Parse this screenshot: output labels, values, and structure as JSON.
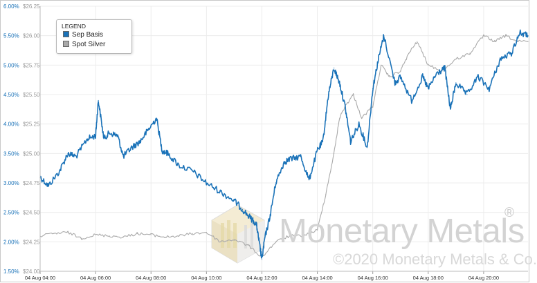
{
  "chart_data": {
    "type": "line",
    "title": "",
    "legend": {
      "title": "LEGEND",
      "placement": "top-left",
      "entries": [
        "Sep Basis",
        "Spot Silver"
      ]
    },
    "x_tick_labels": [
      "04 Aug 04:00",
      "04 Aug 06:00",
      "04 Aug 08:00",
      "04 Aug 10:00",
      "04 Aug 12:00",
      "04 Aug 14:00",
      "04 Aug 16:00",
      "04 Aug 18:00",
      "04 Aug 20:00"
    ],
    "x_range_hours": [
      4.0,
      21.6
    ],
    "y_left": {
      "label": "",
      "ticks": [
        "1.50%",
        "2.00%",
        "2.50%",
        "3.00%",
        "3.50%",
        "4.00%",
        "4.50%",
        "5.00%",
        "5.50%",
        "6.00%"
      ],
      "range": [
        1.5,
        6.0
      ],
      "color": "#1a72b8"
    },
    "y_right": {
      "label": "",
      "ticks": [
        "$24.00",
        "$24.25",
        "$24.50",
        "$24.75",
        "$25.00",
        "$25.25",
        "$25.50",
        "$25.75",
        "$26.00",
        "$26.25"
      ],
      "range": [
        24.0,
        26.25
      ],
      "color": "#999999"
    },
    "grid": true,
    "series": [
      {
        "name": "Sep Basis",
        "axis": "left",
        "color": "#1a72b8",
        "x": [
          4.0,
          4.3,
          4.7,
          5.0,
          5.3,
          5.7,
          6.0,
          6.1,
          6.3,
          6.5,
          6.8,
          7.0,
          7.3,
          7.6,
          7.9,
          8.2,
          8.4,
          8.6,
          9.0,
          9.5,
          10.0,
          10.5,
          11.0,
          11.3,
          11.6,
          11.8,
          11.9,
          12.0,
          12.1,
          12.3,
          12.5,
          12.8,
          13.0,
          13.4,
          13.7,
          14.0,
          14.2,
          14.4,
          14.6,
          14.8,
          15.0,
          15.2,
          15.5,
          15.8,
          16.0,
          16.2,
          16.4,
          16.8,
          17.0,
          17.4,
          17.8,
          18.0,
          18.3,
          18.6,
          18.8,
          19.0,
          19.4,
          19.8,
          20.2,
          20.6,
          21.0,
          21.3,
          21.6
        ],
        "y": [
          3.1,
          2.95,
          3.2,
          3.5,
          3.45,
          3.75,
          3.8,
          4.4,
          3.75,
          3.85,
          3.8,
          3.45,
          3.6,
          3.7,
          3.9,
          4.1,
          3.55,
          3.5,
          3.3,
          3.2,
          3.0,
          2.85,
          2.7,
          2.55,
          2.4,
          2.3,
          2.0,
          1.7,
          2.05,
          2.45,
          3.0,
          3.35,
          3.4,
          3.45,
          3.05,
          3.55,
          3.7,
          4.5,
          4.95,
          4.7,
          4.3,
          3.7,
          4.0,
          3.6,
          4.6,
          5.1,
          5.5,
          4.7,
          4.8,
          4.4,
          4.8,
          4.6,
          4.85,
          4.95,
          4.25,
          4.7,
          4.5,
          4.8,
          4.6,
          5.1,
          5.2,
          5.55,
          5.5
        ]
      },
      {
        "name": "Spot Silver",
        "axis": "right",
        "color": "#a9a9a9",
        "x": [
          4.0,
          4.5,
          5.0,
          5.5,
          6.0,
          6.5,
          7.0,
          7.5,
          8.0,
          8.5,
          9.0,
          9.5,
          10.0,
          10.5,
          11.0,
          11.5,
          12.0,
          12.5,
          13.0,
          13.5,
          14.0,
          14.3,
          14.6,
          14.8,
          15.0,
          15.3,
          15.6,
          16.0,
          16.3,
          16.6,
          17.0,
          17.3,
          17.6,
          18.0,
          18.5,
          19.0,
          19.5,
          20.0,
          20.4,
          20.8,
          21.2,
          21.6
        ],
        "y": [
          24.3,
          24.32,
          24.33,
          24.28,
          24.31,
          24.3,
          24.29,
          24.32,
          24.31,
          24.29,
          24.3,
          24.32,
          24.33,
          24.25,
          24.27,
          24.22,
          24.12,
          24.25,
          24.3,
          24.3,
          24.35,
          24.65,
          25.0,
          25.3,
          25.4,
          25.5,
          25.3,
          25.4,
          25.75,
          25.65,
          25.7,
          25.85,
          25.95,
          25.75,
          25.7,
          25.8,
          25.85,
          26.0,
          25.95,
          26.0,
          25.95,
          25.95
        ]
      }
    ]
  },
  "watermark": {
    "brand": "Monetary Metals",
    "registered": "®",
    "copyright": "©2020 Monetary Metals & Co."
  }
}
